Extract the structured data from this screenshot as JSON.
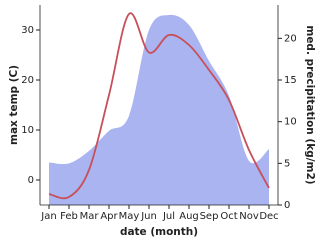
{
  "chart_data": {
    "type": "area-line",
    "xlabel": "date (month)",
    "ylabel": "max temp (C)",
    "y2label": "med. precipitation (kg/m2)",
    "categories": [
      "Jan",
      "Feb",
      "Mar",
      "Apr",
      "May",
      "Jun",
      "Jul",
      "Aug",
      "Sep",
      "Oct",
      "Nov",
      "Dec"
    ],
    "series": [
      {
        "name": "max temp",
        "type": "line",
        "color": "#c8505a",
        "values": [
          -2.8,
          -3.4,
          2,
          17,
          33.2,
          25.5,
          29,
          27,
          22,
          16,
          6,
          -1.6
        ]
      },
      {
        "name": "precipitation",
        "type": "area",
        "axis": "y2",
        "color": "#aab4f0",
        "values": [
          5.1,
          5,
          6.5,
          8.9,
          10.7,
          21,
          22.8,
          21.6,
          17.3,
          13.1,
          5.3,
          6.7
        ]
      }
    ],
    "ylim": [
      -5,
      35
    ],
    "yticks": [
      0,
      10,
      20,
      30
    ],
    "y2lim": [
      0,
      24
    ],
    "y2ticks": [
      0,
      5,
      10,
      15,
      20
    ]
  }
}
